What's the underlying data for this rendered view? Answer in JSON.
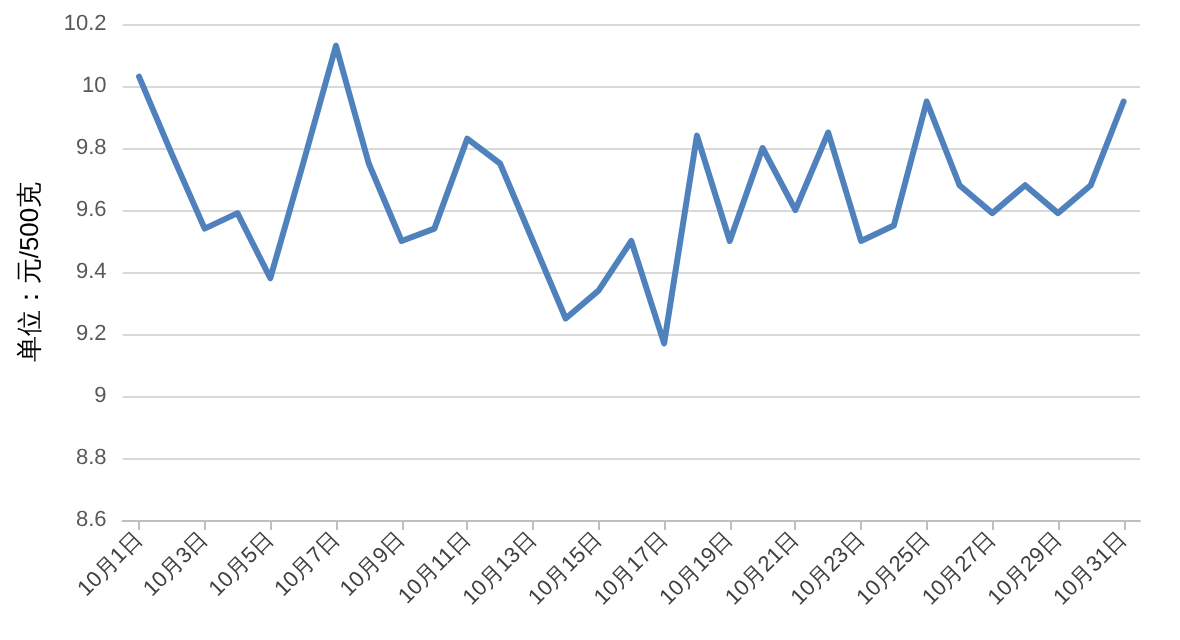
{
  "chart_data": {
    "type": "line",
    "ylabel": "单位：元/500克",
    "categories": [
      "10月1日",
      null,
      "10月3日",
      null,
      "10月5日",
      null,
      "10月7日",
      null,
      "10月9日",
      null,
      "10月11日",
      null,
      "10月13日",
      null,
      "10月15日",
      null,
      "10月17日",
      null,
      "10月19日",
      null,
      "10月21日",
      null,
      "10月23日",
      null,
      "10月25日",
      null,
      "10月27日",
      null,
      "10月29日",
      null,
      "10月31日"
    ],
    "series": [
      {
        "color": "#4f81bd",
        "values": [
          10.03,
          9.78,
          9.54,
          9.59,
          9.38,
          9.75,
          10.13,
          9.75,
          9.5,
          9.54,
          9.83,
          9.75,
          9.5,
          9.25,
          9.34,
          9.5,
          9.17,
          9.84,
          9.5,
          9.8,
          9.6,
          9.85,
          9.5,
          9.55,
          9.95,
          9.68,
          9.59,
          9.68,
          9.59,
          9.68,
          9.95
        ]
      }
    ],
    "ylim": [
      8.6,
      10.2
    ],
    "yticks": [
      8.6,
      8.8,
      9,
      9.2,
      9.4,
      9.6,
      9.8,
      10,
      10.2
    ],
    "grid": "y",
    "marker": "none",
    "line_style": "solid"
  }
}
